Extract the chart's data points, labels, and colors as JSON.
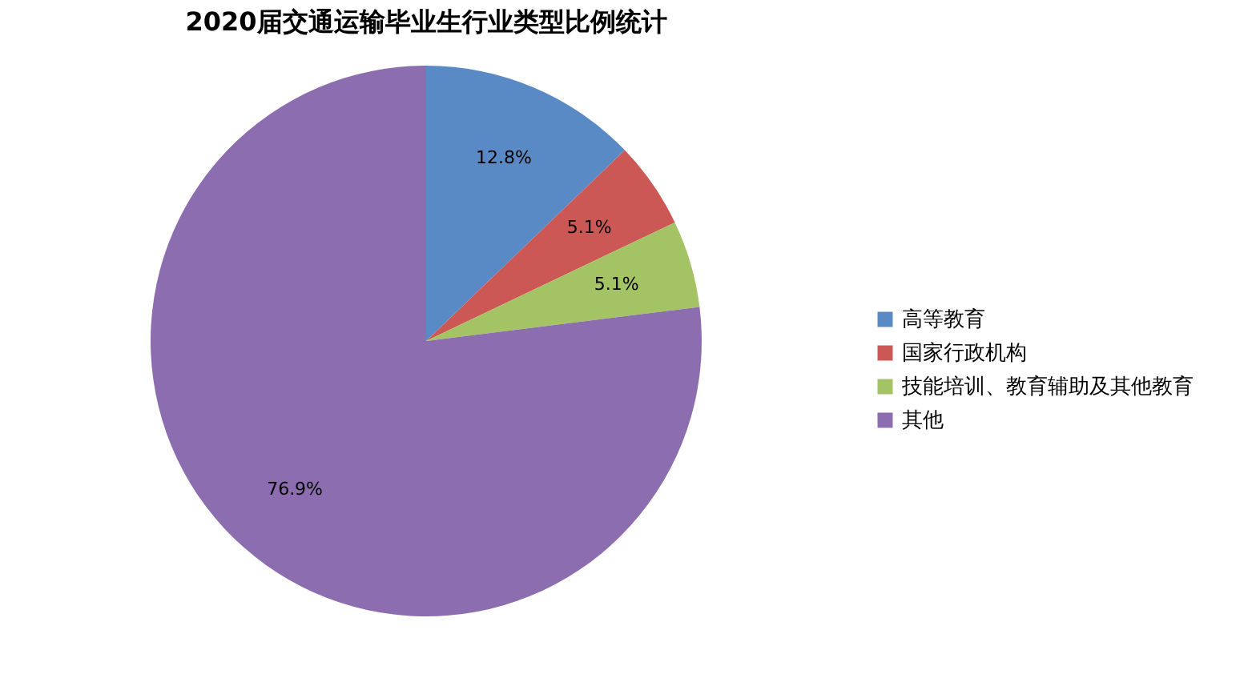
{
  "chart_data": {
    "type": "pie",
    "title": "2020届交通运输毕业生行业类型比例统计",
    "categories": [
      "高等教育",
      "国家行政机构",
      "技能培训、教育辅助及其他教育",
      "其他"
    ],
    "values": [
      12.8,
      5.1,
      5.1,
      76.9
    ],
    "value_labels": [
      "12.8%",
      "5.1%",
      "5.1%",
      "76.9%"
    ],
    "colors": [
      "#5a8ac6",
      "#cc5855",
      "#a4c365",
      "#8b6db0"
    ],
    "legend": "right"
  }
}
